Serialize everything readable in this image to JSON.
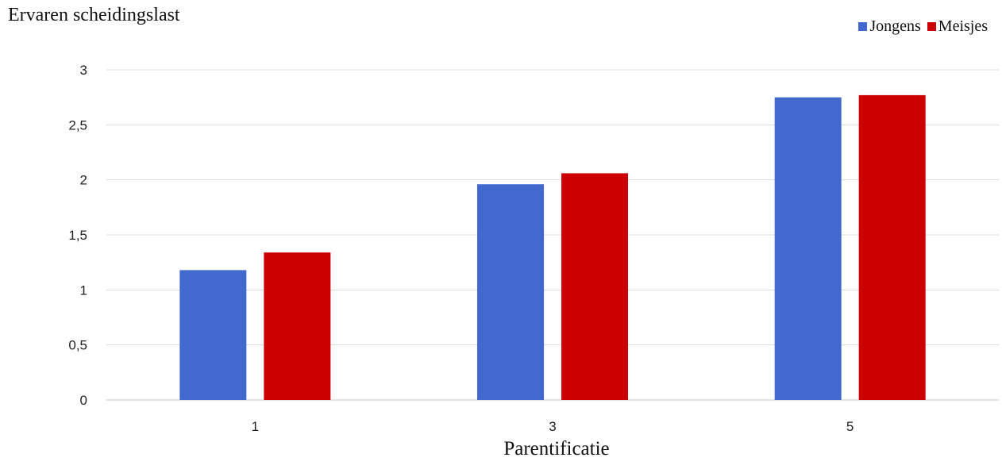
{
  "chart_data": {
    "type": "bar",
    "title": "",
    "ylabel": "Ervaren scheidingslast",
    "xlabel": "Parentificatie",
    "categories": [
      "1",
      "3",
      "5"
    ],
    "series": [
      {
        "name": "Jongens",
        "color": "#4169CD",
        "values": [
          1.18,
          1.96,
          2.75
        ]
      },
      {
        "name": "Meisjes",
        "color": "#CC0000",
        "values": [
          1.34,
          2.06,
          2.77
        ]
      }
    ],
    "ylim": [
      0,
      3
    ],
    "yticks": [
      0,
      0.5,
      1,
      1.5,
      2,
      2.5,
      3
    ],
    "ytick_labels": [
      "0",
      "0,5",
      "1",
      "1,5",
      "2",
      "2,5",
      "3"
    ],
    "grid": true,
    "legend_position": "top-right"
  }
}
